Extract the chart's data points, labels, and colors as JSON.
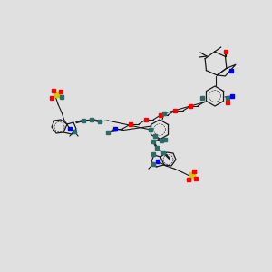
{
  "bg_color": "#e0e0e0",
  "line_color": "#1a1a1a",
  "N_color": "#0000ee",
  "O_color": "#ff0000",
  "S_color": "#cccc00",
  "C_color": "#2d6b6b",
  "figsize": [
    3.0,
    3.0
  ],
  "dpi": 100,
  "scale": 1.0
}
